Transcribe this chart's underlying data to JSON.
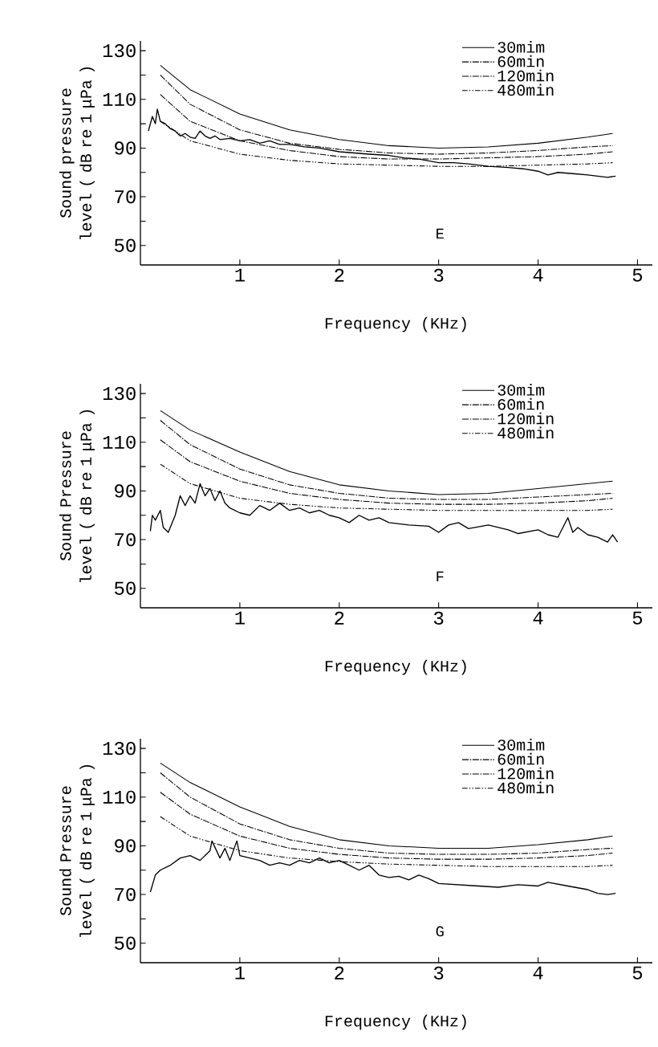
{
  "chart_data": [
    {
      "type": "line",
      "xlabel": "Frequency (KHz)",
      "ylabel": "Sound pressure level ( dB re 1 μPa )",
      "xlim": [
        0,
        5.15
      ],
      "ylim": [
        42,
        134
      ],
      "xticks": [
        1,
        2,
        3,
        4,
        5
      ],
      "yticks": [
        50,
        {
          "value": 60,
          "label": null
        },
        70,
        {
          "value": 80,
          "label": null
        },
        90,
        {
          "value": 100,
          "label": null
        },
        110,
        {
          "value": 120,
          "label": null
        },
        130
      ],
      "legend": "top right",
      "annotations": [
        "E"
      ],
      "series": [
        {
          "name": "30mim",
          "color": "#000000",
          "line_style": "solid",
          "x": [
            0.2,
            0.5,
            1,
            1.5,
            2,
            2.5,
            3,
            3.5,
            4,
            4.5,
            4.75
          ],
          "values": [
            124,
            114,
            104,
            97.5,
            93.5,
            91,
            90,
            90.5,
            92,
            94.5,
            96
          ]
        },
        {
          "name": "60min",
          "color": "#000000",
          "line_style": "dashed",
          "x": [
            0.2,
            0.5,
            1,
            1.5,
            2,
            2.5,
            3,
            3.5,
            4,
            4.5,
            4.75
          ],
          "values": [
            120,
            108,
            97.5,
            92,
            89.5,
            88,
            87.5,
            88,
            89,
            90.5,
            91
          ]
        },
        {
          "name": "120min",
          "color": "#000000",
          "line_style": "dashed",
          "x": [
            0.2,
            0.5,
            1,
            1.5,
            2,
            2.5,
            3,
            3.5,
            4,
            4.5,
            4.75
          ],
          "values": [
            112,
            101,
            93,
            89,
            86.5,
            85.5,
            85.5,
            86,
            86.5,
            87.5,
            88.5
          ]
        },
        {
          "name": "480min",
          "color": "#000000",
          "line_style": "dotted",
          "x": [
            0.2,
            0.5,
            1,
            1.5,
            2,
            2.5,
            3,
            3.5,
            4,
            4.5,
            4.75
          ],
          "values": [
            101,
            93,
            87.5,
            85,
            83.5,
            83,
            82.5,
            82.5,
            83,
            83.5,
            84
          ]
        },
        {
          "color": "#000000",
          "line_style": "solid",
          "x": [
            0.08,
            0.12,
            0.15,
            0.17,
            0.2,
            0.25,
            0.3,
            0.35,
            0.4,
            0.45,
            0.5,
            0.55,
            0.6,
            0.65,
            0.7,
            0.75,
            0.8,
            0.9,
            1.0,
            1.1,
            1.2,
            1.3,
            1.4,
            1.5,
            1.65,
            1.8,
            2.0,
            2.15,
            2.3,
            2.5,
            2.65,
            2.8,
            3.0,
            3.15,
            3.3,
            3.5,
            3.7,
            3.85,
            4.0,
            4.1,
            4.2,
            4.35,
            4.5,
            4.6,
            4.7,
            4.78
          ],
          "values": [
            97,
            103,
            100,
            106,
            101,
            100,
            98,
            97,
            95,
            96,
            94.5,
            94,
            97,
            95,
            94,
            95,
            93.5,
            94,
            93,
            93.5,
            92,
            93,
            91.5,
            91.5,
            90.5,
            90,
            88.5,
            88,
            87.5,
            87,
            86,
            85.5,
            84,
            84,
            83.5,
            82.5,
            82,
            81.5,
            80.5,
            79,
            80,
            79.5,
            79,
            78.5,
            78,
            78.5
          ]
        }
      ]
    },
    {
      "type": "line",
      "xlabel": "Frequency (KHz)",
      "ylabel": "Sound Pressure level ( dB re 1 μPa )",
      "xlim": [
        0,
        5.15
      ],
      "ylim": [
        42,
        134
      ],
      "xticks": [
        1,
        2,
        3,
        4,
        5
      ],
      "yticks": [
        50,
        {
          "value": 60,
          "label": null
        },
        70,
        {
          "value": 80,
          "label": null
        },
        90,
        {
          "value": 100,
          "label": null
        },
        110,
        {
          "value": 120,
          "label": null
        },
        130
      ],
      "legend": "top right",
      "annotations": [
        "F"
      ],
      "series": [
        {
          "name": "30mim",
          "color": "#000000",
          "line_style": "solid",
          "x": [
            0.2,
            0.5,
            1,
            1.5,
            2,
            2.5,
            3,
            3.5,
            4,
            4.5,
            4.75
          ],
          "values": [
            123,
            115,
            106,
            98,
            92.5,
            90,
            88.5,
            89,
            91,
            93,
            94
          ]
        },
        {
          "name": "60min",
          "color": "#000000",
          "line_style": "dashed",
          "x": [
            0.2,
            0.5,
            1,
            1.5,
            2,
            2.5,
            3,
            3.5,
            4,
            4.5,
            4.75
          ],
          "values": [
            119,
            109,
            99,
            92.5,
            89,
            87,
            86.5,
            86.5,
            87.5,
            88.5,
            89
          ]
        },
        {
          "name": "120min",
          "color": "#000000",
          "line_style": "dashed",
          "x": [
            0.2,
            0.5,
            1,
            1.5,
            2,
            2.5,
            3,
            3.5,
            4,
            4.5,
            4.75
          ],
          "values": [
            111,
            102,
            94,
            89,
            86.5,
            85,
            84.5,
            84.5,
            85,
            86,
            87
          ]
        },
        {
          "name": "480min",
          "color": "#000000",
          "line_style": "dotted",
          "x": [
            0.2,
            0.5,
            1,
            1.5,
            2,
            2.5,
            3,
            3.5,
            4,
            4.5,
            4.75
          ],
          "values": [
            101,
            93,
            87,
            84.5,
            83,
            82.5,
            82,
            82,
            82,
            82,
            82.5
          ]
        },
        {
          "color": "#000000",
          "line_style": "solid",
          "x": [
            0.1,
            0.12,
            0.15,
            0.2,
            0.23,
            0.28,
            0.35,
            0.4,
            0.45,
            0.5,
            0.55,
            0.6,
            0.65,
            0.7,
            0.75,
            0.8,
            0.85,
            0.9,
            1.0,
            1.1,
            1.2,
            1.3,
            1.4,
            1.5,
            1.6,
            1.7,
            1.8,
            1.9,
            2.0,
            2.1,
            2.2,
            2.3,
            2.4,
            2.5,
            2.7,
            2.9,
            3.0,
            3.1,
            3.2,
            3.3,
            3.5,
            3.7,
            3.8,
            4.0,
            4.1,
            4.2,
            4.3,
            4.35,
            4.4,
            4.5,
            4.6,
            4.7,
            4.75,
            4.8
          ],
          "values": [
            73.5,
            80,
            78,
            82,
            75,
            73,
            80,
            88,
            84,
            88,
            85,
            93,
            88,
            91,
            86,
            90,
            85,
            83,
            81,
            80,
            84,
            82,
            85,
            82,
            83,
            81,
            82,
            80,
            79,
            77,
            80,
            78,
            79,
            77,
            76,
            75.5,
            73,
            76,
            77,
            74.5,
            76,
            74,
            72.5,
            74,
            72,
            71,
            79,
            73,
            75,
            72,
            71,
            69,
            72,
            69
          ]
        }
      ]
    },
    {
      "type": "line",
      "xlabel": "Frequency (KHz)",
      "ylabel": "Sound Pressure level ( dB re 1 μPa )",
      "xlim": [
        0,
        5.15
      ],
      "ylim": [
        42,
        134
      ],
      "xticks": [
        1,
        2,
        3,
        4,
        5
      ],
      "yticks": [
        50,
        {
          "value": 60,
          "label": null
        },
        70,
        {
          "value": 80,
          "label": null
        },
        90,
        {
          "value": 100,
          "label": null
        },
        110,
        {
          "value": 120,
          "label": null
        },
        130
      ],
      "legend": "top right",
      "annotations": [
        "G"
      ],
      "series": [
        {
          "name": "30mim",
          "color": "#000000",
          "line_style": "solid",
          "x": [
            0.2,
            0.5,
            1,
            1.5,
            2,
            2.5,
            3,
            3.5,
            4,
            4.5,
            4.75
          ],
          "values": [
            124,
            116,
            106,
            98,
            92.5,
            90,
            89,
            89,
            90.5,
            92.5,
            94
          ]
        },
        {
          "name": "60min",
          "color": "#000000",
          "line_style": "dashed",
          "x": [
            0.2,
            0.5,
            1,
            1.5,
            2,
            2.5,
            3,
            3.5,
            4,
            4.5,
            4.75
          ],
          "values": [
            120,
            110,
            99,
            92.5,
            89,
            87,
            86.5,
            86.5,
            87,
            88.5,
            89
          ]
        },
        {
          "name": "120min",
          "color": "#000000",
          "line_style": "dashed",
          "x": [
            0.2,
            0.5,
            1,
            1.5,
            2,
            2.5,
            3,
            3.5,
            4,
            4.5,
            4.75
          ],
          "values": [
            112,
            103,
            94,
            89,
            86.5,
            85,
            84.5,
            84.5,
            85,
            86,
            87
          ]
        },
        {
          "name": "480min",
          "color": "#000000",
          "line_style": "dotted",
          "x": [
            0.2,
            0.5,
            1,
            1.5,
            2,
            2.5,
            3,
            3.5,
            4,
            4.5,
            4.75
          ],
          "values": [
            102,
            94,
            88,
            85,
            83.5,
            82.5,
            82,
            81.5,
            81.5,
            81.5,
            82
          ]
        },
        {
          "color": "#000000",
          "line_style": "solid",
          "x": [
            0.1,
            0.15,
            0.2,
            0.3,
            0.4,
            0.5,
            0.6,
            0.7,
            0.72,
            0.8,
            0.85,
            0.9,
            0.97,
            1.0,
            1.1,
            1.2,
            1.3,
            1.4,
            1.5,
            1.6,
            1.7,
            1.8,
            1.9,
            2.0,
            2.1,
            2.2,
            2.3,
            2.4,
            2.5,
            2.6,
            2.7,
            2.8,
            2.9,
            3.0,
            3.2,
            3.4,
            3.6,
            3.8,
            4.0,
            4.1,
            4.3,
            4.5,
            4.6,
            4.7,
            4.78
          ],
          "values": [
            71,
            78,
            80,
            82,
            85,
            86,
            84,
            88,
            92,
            85,
            89,
            84,
            92,
            86,
            85,
            84,
            82,
            83,
            82,
            84,
            83,
            85,
            83,
            84,
            82,
            80,
            82,
            78,
            77,
            77.5,
            76,
            78,
            76.5,
            74.5,
            74,
            73.5,
            73,
            74,
            73.5,
            75,
            73.5,
            72,
            70.5,
            70,
            70.5
          ]
        }
      ]
    }
  ]
}
